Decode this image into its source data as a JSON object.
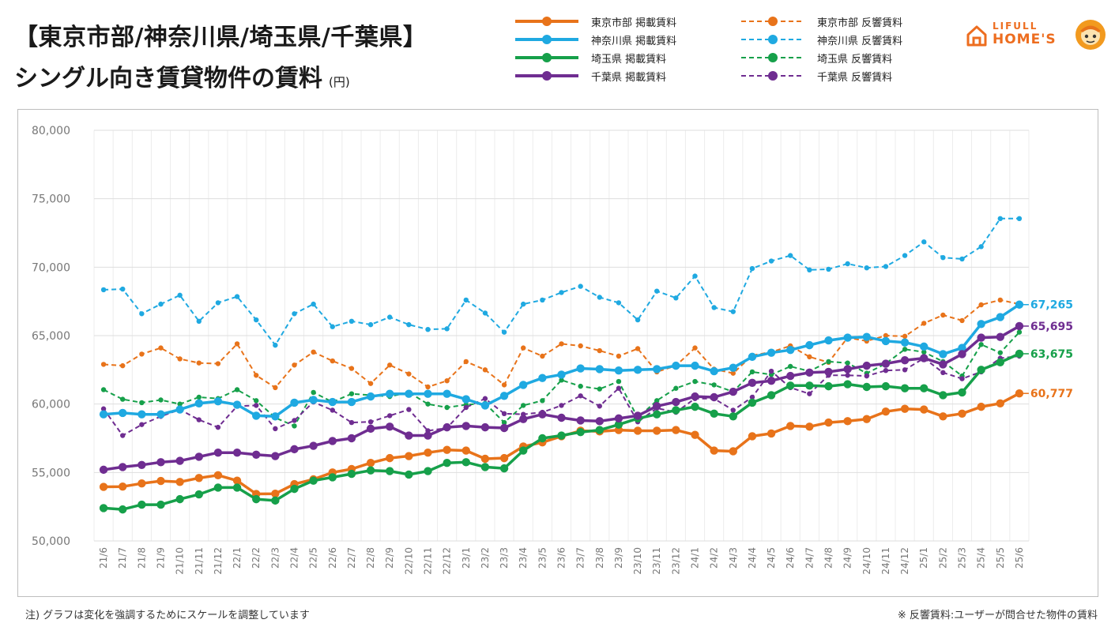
{
  "title_line1": "【東京市部/神奈川県/埼玉県/千葉県】",
  "title_line2": "シングル向き賃貸物件の賃料",
  "title_unit": "(円)",
  "logo": {
    "text_top": "LIFULL",
    "text_bottom": "HOME'S"
  },
  "footnote_left": "注) グラフは変化を強調するためにスケールを調整しています",
  "footnote_right": "※ 反響賃料:ユーザーが問合せた物件の賃料",
  "chart_data": {
    "type": "line",
    "ylim": [
      50000,
      80000
    ],
    "y_ticks": [
      "50,000",
      "55,000",
      "60,000",
      "65,000",
      "70,000",
      "75,000",
      "80,000"
    ],
    "grid": true,
    "legend_position": "top",
    "categories": [
      "21/6",
      "21/7",
      "21/8",
      "21/9",
      "21/10",
      "21/11",
      "21/12",
      "22/1",
      "22/2",
      "22/3",
      "22/4",
      "22/5",
      "22/6",
      "22/7",
      "22/8",
      "22/9",
      "22/10",
      "22/11",
      "22/12",
      "23/1",
      "23/2",
      "23/3",
      "23/4",
      "23/5",
      "23/6",
      "23/7",
      "23/8",
      "23/9",
      "23/10",
      "23/11",
      "23/12",
      "24/1",
      "24/2",
      "24/3",
      "24/4",
      "24/5",
      "24/6",
      "24/7",
      "24/8",
      "24/9",
      "24/10",
      "24/11",
      "24/12",
      "25/1",
      "25/2",
      "25/3",
      "25/4",
      "25/5",
      "25/6"
    ],
    "series": [
      {
        "name": "東京市部 掲載賃料",
        "color": "#E8731A",
        "style": "solid",
        "end_label": "60,777",
        "values": [
          53950,
          53970,
          54200,
          54380,
          54310,
          54600,
          54800,
          54400,
          53430,
          53450,
          54150,
          54500,
          55000,
          55250,
          55700,
          56050,
          56200,
          56450,
          56650,
          56600,
          56000,
          56050,
          56900,
          57200,
          57650,
          58050,
          58000,
          58100,
          58050,
          58050,
          58100,
          57750,
          56600,
          56550,
          57650,
          57850,
          58400,
          58350,
          58650,
          58750,
          58900,
          59450,
          59650,
          59600,
          59100,
          59300,
          59800,
          60050,
          60777
        ]
      },
      {
        "name": "神奈川県 掲載賃料",
        "color": "#1FA9E1",
        "style": "solid",
        "end_label": "67,265",
        "values": [
          59250,
          59350,
          59250,
          59250,
          59600,
          60050,
          60200,
          59950,
          59150,
          59100,
          60100,
          60300,
          60150,
          60150,
          60550,
          60750,
          60750,
          60750,
          60750,
          60350,
          59900,
          60600,
          61400,
          61900,
          62150,
          62600,
          62550,
          62450,
          62500,
          62550,
          62800,
          62800,
          62400,
          62650,
          63450,
          63750,
          63950,
          64300,
          64650,
          64850,
          64900,
          64600,
          64500,
          64200,
          63650,
          64100,
          65850,
          66350,
          67265
        ]
      },
      {
        "name": "埼玉県 掲載賃料",
        "color": "#16A04A",
        "style": "solid",
        "end_label": "63,675",
        "values": [
          52400,
          52300,
          52650,
          52650,
          53050,
          53400,
          53900,
          53900,
          53050,
          52950,
          53800,
          54400,
          54650,
          54900,
          55150,
          55100,
          54850,
          55100,
          55700,
          55750,
          55400,
          55300,
          56600,
          57500,
          57700,
          57950,
          58100,
          58500,
          58950,
          59250,
          59550,
          59800,
          59300,
          59100,
          60100,
          60650,
          61350,
          61350,
          61300,
          61450,
          61250,
          61300,
          61150,
          61150,
          60650,
          60850,
          62500,
          63050,
          63675
        ]
      },
      {
        "name": "千葉県 掲載賃料",
        "color": "#6F2D91",
        "style": "solid",
        "end_label": "65,695",
        "values": [
          55200,
          55400,
          55550,
          55750,
          55850,
          56150,
          56450,
          56450,
          56300,
          56200,
          56700,
          56950,
          57300,
          57500,
          58200,
          58350,
          57700,
          57700,
          58300,
          58400,
          58300,
          58250,
          58900,
          59250,
          59000,
          58800,
          58750,
          58950,
          59150,
          59850,
          60150,
          60550,
          60500,
          60900,
          61550,
          61700,
          62050,
          62300,
          62350,
          62550,
          62800,
          62950,
          63200,
          63350,
          62900,
          63650,
          64850,
          64900,
          65695
        ]
      },
      {
        "name": "東京市部 反響賃料",
        "color": "#E8731A",
        "style": "dashed",
        "values": [
          62900,
          62800,
          63650,
          64100,
          63300,
          63000,
          62950,
          64400,
          62100,
          61200,
          62850,
          63800,
          63150,
          62600,
          61500,
          62850,
          62200,
          61250,
          61700,
          63100,
          62500,
          61400,
          64100,
          63500,
          64400,
          64250,
          63900,
          63500,
          64050,
          62350,
          62800,
          64100,
          62550,
          62250,
          63550,
          63800,
          64250,
          63450,
          63050,
          64850,
          64600,
          65000,
          64950,
          65900,
          66500,
          66100,
          67250,
          67600,
          67300
        ]
      },
      {
        "name": "神奈川県 反響賃料",
        "color": "#1FA9E1",
        "style": "dashed",
        "values": [
          68350,
          68400,
          66600,
          67300,
          67950,
          66050,
          67400,
          67850,
          66150,
          64300,
          66600,
          67300,
          65650,
          66050,
          65800,
          66350,
          65800,
          65450,
          65500,
          67600,
          66650,
          65250,
          67300,
          67600,
          68150,
          68600,
          67800,
          67400,
          66150,
          68250,
          67750,
          69350,
          67050,
          66750,
          69900,
          70450,
          70850,
          69800,
          69850,
          70250,
          69950,
          70050,
          70850,
          71850,
          70700,
          70600,
          71500,
          73550,
          73550
        ]
      },
      {
        "name": "埼玉県 反響賃料",
        "color": "#16A04A",
        "style": "dashed",
        "values": [
          61050,
          60350,
          60100,
          60300,
          60000,
          60500,
          60400,
          61050,
          60250,
          59000,
          58400,
          60850,
          60150,
          60750,
          60650,
          60550,
          60850,
          60000,
          59750,
          59950,
          60050,
          58650,
          59900,
          60250,
          61750,
          61300,
          61100,
          61650,
          59000,
          60250,
          61150,
          61650,
          61400,
          60900,
          62350,
          62150,
          62750,
          62400,
          63100,
          63000,
          62250,
          62950,
          64000,
          63800,
          63100,
          62050,
          64350,
          63750,
          65250
        ]
      },
      {
        "name": "千葉県 反響賃料",
        "color": "#6F2D91",
        "style": "dashed",
        "values": [
          59650,
          57700,
          58500,
          59100,
          59600,
          58850,
          58300,
          59850,
          59900,
          58200,
          58800,
          60150,
          59550,
          58650,
          58700,
          59150,
          59600,
          58050,
          58250,
          59750,
          60400,
          59300,
          59250,
          59400,
          59900,
          60600,
          59850,
          61150,
          58700,
          59700,
          59400,
          60400,
          60400,
          59550,
          60500,
          62400,
          61200,
          60750,
          62100,
          62100,
          62050,
          62450,
          62500,
          63350,
          62300,
          61850,
          62350,
          63350,
          63500
        ]
      }
    ]
  }
}
